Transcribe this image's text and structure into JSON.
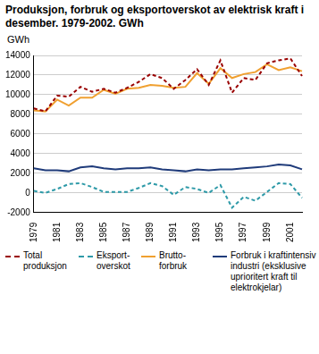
{
  "chart_data": {
    "type": "line",
    "title": "Produksjon, forbruk og eksportoverskot av elektrisk kraft i desember. 1979-2002. GWh",
    "y_label": "GWh",
    "categories": [
      "1979",
      null,
      "1981",
      null,
      "1983",
      null,
      "1985",
      null,
      "1987",
      null,
      "1989",
      null,
      "1991",
      null,
      "1993",
      null,
      "1995",
      null,
      "1997",
      null,
      "1999",
      null,
      "2001",
      null
    ],
    "series": [
      {
        "name": "Total produksjon",
        "color": "#990000",
        "line_style": "dashed",
        "values": [
          8600,
          8300,
          9900,
          9800,
          10800,
          10300,
          10600,
          10200,
          10700,
          11300,
          12100,
          11700,
          10600,
          11500,
          12600,
          11000,
          13500,
          10200,
          11700,
          11500,
          13200,
          13500,
          13700,
          11900
        ]
      },
      {
        "name": "Eksport-overskot",
        "color": "#2e9aa8",
        "line_style": "dashed",
        "values": [
          200,
          0,
          400,
          900,
          1000,
          600,
          100,
          100,
          100,
          500,
          1000,
          700,
          -200,
          600,
          400,
          0,
          800,
          -1500,
          -400,
          -800,
          100,
          1000,
          900,
          -500
        ]
      },
      {
        "name": "Brutto-forbruk",
        "color": "#f0a030",
        "line_style": "solid",
        "values": [
          8400,
          8300,
          9500,
          8900,
          9700,
          9700,
          10500,
          10100,
          10600,
          10700,
          11000,
          10900,
          10700,
          10800,
          12200,
          11100,
          12700,
          11700,
          12100,
          12300,
          13100,
          12500,
          12800,
          12400
        ]
      },
      {
        "name": "Forbruk i kraftintensiv industri (eksklusive uprioritert kraft til elektrokjelar)",
        "color": "#1f3b7a",
        "line_style": "solid",
        "values": [
          2500,
          2300,
          2300,
          2200,
          2600,
          2700,
          2500,
          2400,
          2500,
          2500,
          2600,
          2400,
          2300,
          2200,
          2400,
          2300,
          2400,
          2400,
          2500,
          2600,
          2700,
          2900,
          2800,
          2400
        ]
      }
    ],
    "ylim": [
      -2000,
      14000
    ],
    "yticks": [
      -2000,
      0,
      2000,
      4000,
      6000,
      8000,
      10000,
      12000,
      14000
    ],
    "grid": true,
    "legend": "bottom"
  }
}
